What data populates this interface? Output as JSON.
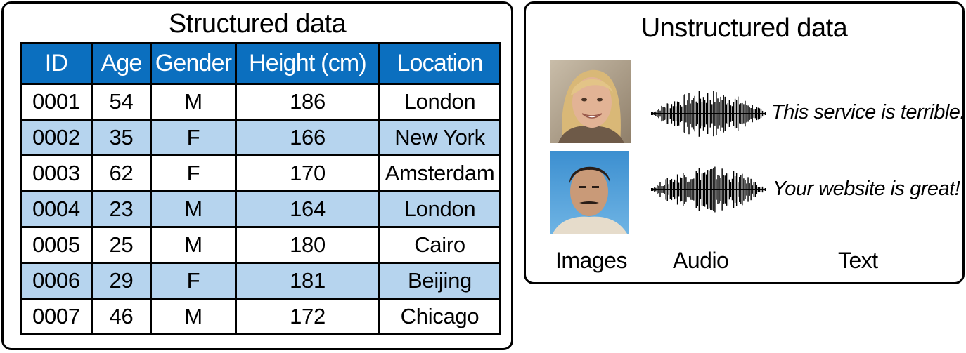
{
  "structured": {
    "title": "Structured data",
    "headers": [
      "ID",
      "Age",
      "Gender",
      "Height (cm)",
      "Location"
    ],
    "rows": [
      [
        "0001",
        "54",
        "M",
        "186",
        "London"
      ],
      [
        "0002",
        "35",
        "F",
        "166",
        "New York"
      ],
      [
        "0003",
        "62",
        "F",
        "170",
        "Amsterdam"
      ],
      [
        "0004",
        "23",
        "M",
        "164",
        "London"
      ],
      [
        "0005",
        "25",
        "M",
        "180",
        "Cairo"
      ],
      [
        "0006",
        "29",
        "F",
        "181",
        "Beijing"
      ],
      [
        "0007",
        "46",
        "M",
        "172",
        "Chicago"
      ]
    ],
    "colors": {
      "header_bg": "#0b6fbf",
      "alt_row_bg": "#b6d4ee"
    }
  },
  "unstructured": {
    "title": "Unstructured data",
    "text_samples": [
      "This service is terrible!",
      "Your website is great!"
    ],
    "labels": {
      "images": "Images",
      "audio": "Audio",
      "text": "Text"
    }
  }
}
